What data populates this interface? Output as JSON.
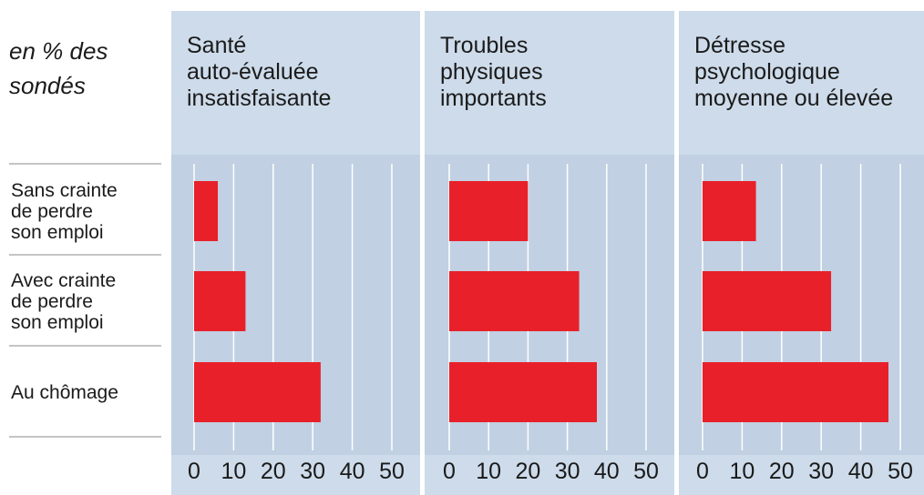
{
  "subtitle": "en % des\nsondés",
  "categories": [
    "Sans crainte\nde perdre\nson emploi",
    "Avec crainte\nde perdre\nson emploi",
    "Au chômage"
  ],
  "chart_data": [
    {
      "type": "bar",
      "title": "Santé\nauto-évaluée\ninsatisfaisante",
      "values": [
        6,
        13,
        32
      ],
      "color": "#e8202a",
      "xlim": [
        0,
        50
      ],
      "xticks": [
        0,
        10,
        20,
        30,
        40,
        50
      ],
      "grid": true
    },
    {
      "type": "bar",
      "title": "Troubles\nphysiques\nimportants",
      "values": [
        20,
        33,
        37.5
      ],
      "color": "#e8202a",
      "xlim": [
        0,
        50
      ],
      "xticks": [
        0,
        10,
        20,
        30,
        40,
        50
      ],
      "grid": true
    },
    {
      "type": "bar",
      "title": "Détresse\npsychologique\nmoyenne ou élevée",
      "values": [
        13.5,
        32.5,
        47
      ],
      "color": "#e8202a",
      "xlim": [
        0,
        50
      ],
      "xticks": [
        0,
        10,
        20,
        30,
        40,
        50
      ],
      "grid": true
    }
  ]
}
